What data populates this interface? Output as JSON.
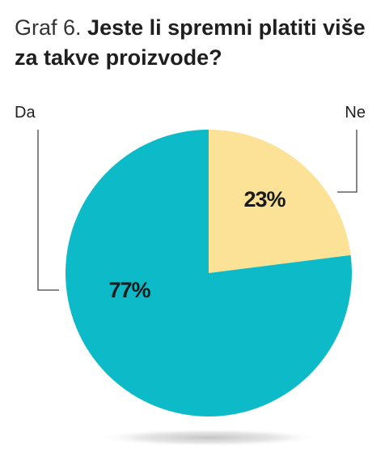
{
  "title": {
    "prefix": "Graf 6.",
    "main": "Jeste li spremni platiti više za takve proizvode?"
  },
  "chart_data": {
    "type": "pie",
    "categories": [
      "Ne",
      "Da"
    ],
    "values": [
      23,
      77
    ],
    "labels": [
      "23%",
      "77%"
    ],
    "colors": [
      "#FCE296",
      "#0DBBC8"
    ],
    "title": "Jeste li spremni platiti više za takve proizvode?",
    "legend": "callout labels"
  }
}
